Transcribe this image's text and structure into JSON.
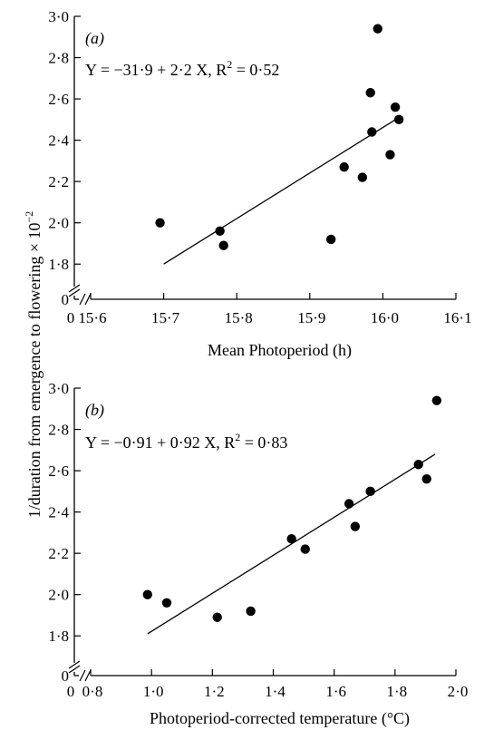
{
  "figure": {
    "y_axis_label_main": "1/duration from emergence to flowering × 10",
    "y_axis_label_exp": "−2"
  },
  "chart_data": [
    {
      "type": "scatter",
      "panel_label": "(a)",
      "equation_main": "Y = −31·9 + 2·2 X, R",
      "equation_sup": "2",
      "equation_tail": " = 0·52",
      "xlabel": "Mean Photoperiod (h)",
      "ylabel": "",
      "x_ticks": [
        15.6,
        15.7,
        15.8,
        15.9,
        16.0,
        16.1
      ],
      "x_tick_labels": [
        "15·6",
        "15·7",
        "15·8",
        "15·9",
        "16·0",
        "16·1"
      ],
      "x_zero_label": "0",
      "y_ticks": [
        1.8,
        2.0,
        2.2,
        2.4,
        2.6,
        2.8,
        3.0
      ],
      "y_tick_labels": [
        "1·8",
        "2·0",
        "2·2",
        "2·4",
        "2·6",
        "2·8",
        "3·0"
      ],
      "y_zero_label": "0",
      "xlim": [
        15.6,
        16.1
      ],
      "ylim": [
        1.7,
        3.0
      ],
      "axis_break": true,
      "points": [
        {
          "x": 15.695,
          "y": 2.0
        },
        {
          "x": 15.777,
          "y": 1.96
        },
        {
          "x": 15.782,
          "y": 1.89
        },
        {
          "x": 15.929,
          "y": 1.92
        },
        {
          "x": 15.947,
          "y": 2.27
        },
        {
          "x": 15.972,
          "y": 2.22
        },
        {
          "x": 15.983,
          "y": 2.63
        },
        {
          "x": 15.985,
          "y": 2.44
        },
        {
          "x": 15.993,
          "y": 2.94
        },
        {
          "x": 16.01,
          "y": 2.33
        },
        {
          "x": 16.017,
          "y": 2.56
        },
        {
          "x": 16.022,
          "y": 2.5
        }
      ],
      "fit_line": {
        "x": [
          15.7,
          16.022
        ],
        "y": [
          1.8,
          2.51
        ]
      }
    },
    {
      "type": "scatter",
      "panel_label": "(b)",
      "equation_main": "Y = −0·91 + 0·92 X, R",
      "equation_sup": "2",
      "equation_tail": " = 0·83",
      "xlabel": "Photoperiod-corrected temperature (°C)",
      "ylabel": "",
      "x_ticks": [
        0.8,
        1.0,
        1.2,
        1.4,
        1.6,
        1.8,
        2.0
      ],
      "x_tick_labels": [
        "0·8",
        "1·0",
        "1·2",
        "1·4",
        "1·6",
        "1·8",
        "2·0"
      ],
      "x_zero_label": "0",
      "y_ticks": [
        1.8,
        2.0,
        2.2,
        2.4,
        2.6,
        2.8,
        3.0
      ],
      "y_tick_labels": [
        "1·8",
        "2·0",
        "2·2",
        "2·4",
        "2·6",
        "2·8",
        "3·0"
      ],
      "y_zero_label": "0",
      "xlim": [
        0.8,
        2.0
      ],
      "ylim": [
        1.7,
        3.0
      ],
      "axis_break": true,
      "points": [
        {
          "x": 0.987,
          "y": 2.0
        },
        {
          "x": 1.05,
          "y": 1.96
        },
        {
          "x": 1.216,
          "y": 1.89
        },
        {
          "x": 1.326,
          "y": 1.92
        },
        {
          "x": 1.46,
          "y": 2.27
        },
        {
          "x": 1.505,
          "y": 2.22
        },
        {
          "x": 1.649,
          "y": 2.44
        },
        {
          "x": 1.669,
          "y": 2.33
        },
        {
          "x": 1.719,
          "y": 2.5
        },
        {
          "x": 1.877,
          "y": 2.63
        },
        {
          "x": 1.904,
          "y": 2.56
        },
        {
          "x": 1.937,
          "y": 2.94
        }
      ],
      "fit_line": {
        "x": [
          0.987,
          1.932
        ],
        "y": [
          1.81,
          2.68
        ]
      }
    }
  ]
}
